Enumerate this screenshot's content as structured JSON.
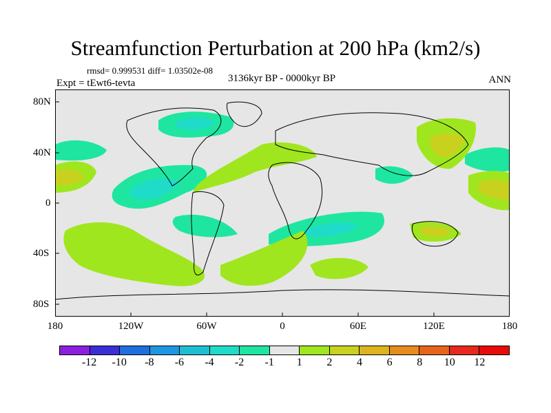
{
  "title": "Streamfunction Perturbation at 200 hPa (km2/s)",
  "stats": "rmsd= 0.999531 diff= 1.03502e-08",
  "experiment": "Expt = tEwt6-tevta",
  "period": "3136kyr BP - 0000kyr BP",
  "season": "ANN",
  "y_ticks": [
    "80N",
    "40N",
    "0",
    "40S",
    "80S"
  ],
  "x_ticks": [
    "180",
    "120W",
    "60W",
    "0",
    "60E",
    "120E",
    "180"
  ],
  "colorbar": {
    "labels": [
      "-12",
      "-10",
      "-8",
      "-6",
      "-4",
      "-2",
      "-1",
      "1",
      "2",
      "4",
      "6",
      "8",
      "10",
      "12"
    ],
    "colors": [
      "#8c1ee0",
      "#3c2ed6",
      "#1e6ee0",
      "#1e96e0",
      "#1ebed2",
      "#1edcc8",
      "#1ee6a0",
      "#e6e6e6",
      "#a0e61e",
      "#c8d21e",
      "#dcb41e",
      "#e68c1e",
      "#e6641e",
      "#e6281e",
      "#e60a0a"
    ]
  },
  "chart_data": {
    "type": "heatmap",
    "title": "Streamfunction Perturbation at 200 hPa (km2/s)",
    "xlabel": "",
    "ylabel": "",
    "xlim": [
      -180,
      180
    ],
    "ylim": [
      -90,
      90
    ],
    "contour_levels": [
      -12,
      -10,
      -8,
      -6,
      -4,
      -2,
      -1,
      1,
      2,
      4,
      6,
      8,
      10,
      12
    ],
    "features": [
      {
        "label": "negative anomaly over Hudson Bay",
        "sign": "negative"
      },
      {
        "label": "negative anomaly over Caribbean / Gulf of Mexico",
        "sign": "negative"
      },
      {
        "label": "negative anomaly band over South Atlantic and Indian Ocean",
        "sign": "negative"
      },
      {
        "label": "positive anomaly over Mediterranean and Atlantic",
        "sign": "positive"
      },
      {
        "label": "positive anomaly over North Pacific near Japan",
        "sign": "positive"
      },
      {
        "label": "positive anomaly band in South Pacific",
        "sign": "positive"
      }
    ]
  }
}
